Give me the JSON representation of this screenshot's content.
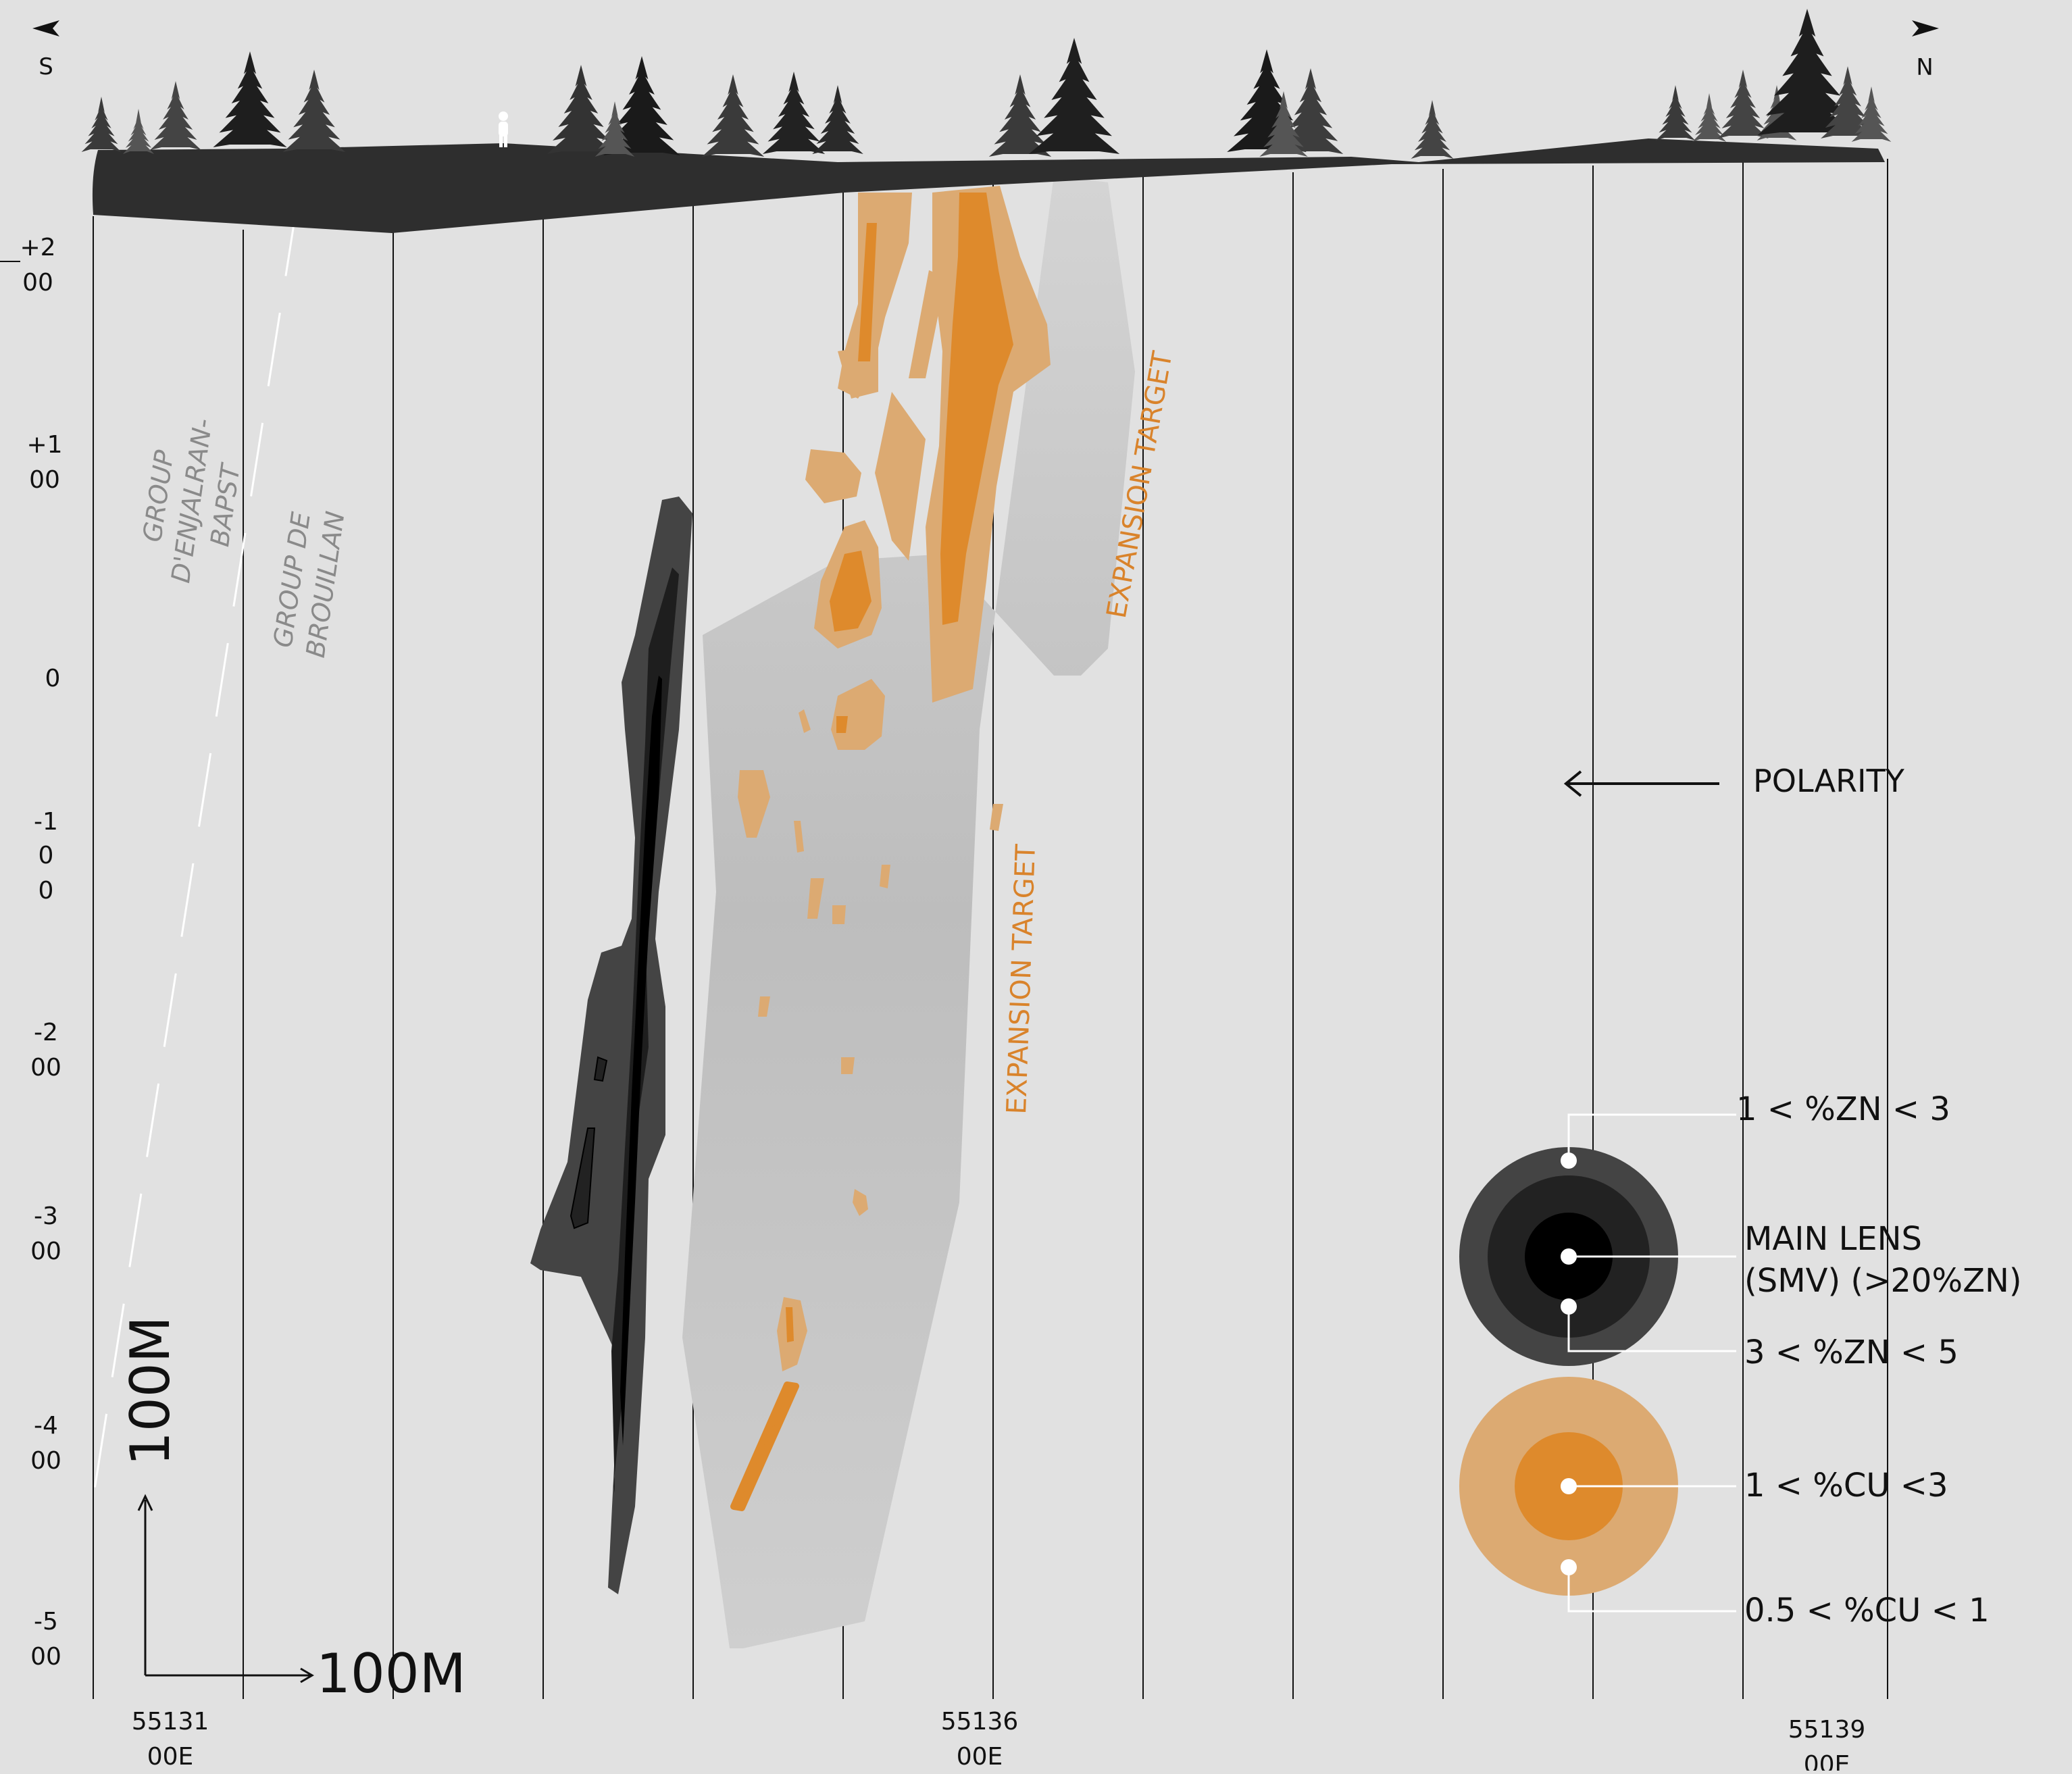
{
  "compass": {
    "south": "S",
    "north": "N"
  },
  "elevation_labels": [
    {
      "top": "+2",
      "bottom": "00"
    },
    {
      "top": "+1",
      "bottom": "00"
    },
    {
      "top": "0",
      "bottom": ""
    },
    {
      "top": "-1",
      "mid": "0",
      "bottom": "0"
    },
    {
      "top": "-2",
      "bottom": "00"
    },
    {
      "top": "-3",
      "bottom": "00"
    },
    {
      "top": "-4",
      "bottom": "00"
    },
    {
      "top": "-5",
      "bottom": "00"
    }
  ],
  "easting_labels": [
    {
      "top": "55131",
      "bottom": "00E"
    },
    {
      "top": "55136",
      "bottom": "00E"
    },
    {
      "top": "55139",
      "bottom": "00E"
    }
  ],
  "geology": {
    "group1": [
      "GROUP",
      "D'ENJALRAN-",
      "BAPST"
    ],
    "group2": [
      "GROUP DE",
      "BROUILLAN"
    ]
  },
  "targets": {
    "upper": "EXPANSION TARGET",
    "lower": "EXPANSION TARGET"
  },
  "polarity": "POLARITY",
  "scale": {
    "vertical": "100M",
    "horizontal": "100M"
  },
  "legend": {
    "zn_low": "1 < %ZN < 3",
    "main_lens_1": "MAIN LENS",
    "main_lens_2": "(SMV) (>20%ZN)",
    "zn_mid": "3 < %ZN < 5",
    "cu_high": "1 < %CU <3",
    "cu_low": "0.5 < %CU < 1"
  },
  "colors": {
    "background": "#e1e1e1",
    "ground": "#2e2e2e",
    "zn_outer": "#444444",
    "zn_mid": "#222222",
    "zn_core": "#000000",
    "cu_high": "#de8a2c",
    "cu_low": "#dcaa72",
    "target_zone": "#bdbdbd",
    "target_text": "#d9832b"
  }
}
